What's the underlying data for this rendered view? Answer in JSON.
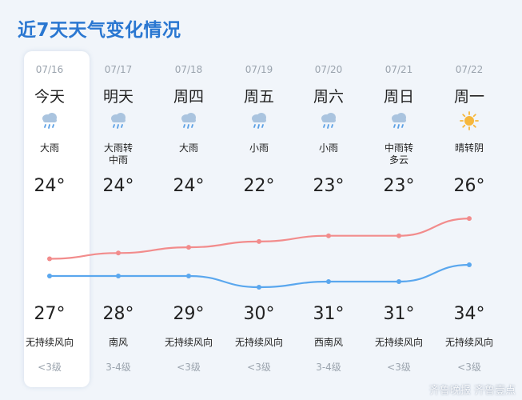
{
  "title": "近7天天气变化情况",
  "days": [
    {
      "date": "07/16",
      "weekday": "今天",
      "icon": "rain-cloud-icon",
      "condition": "大雨",
      "high": "24°",
      "low": "27°",
      "wind": "无持续风向",
      "level": "<3级"
    },
    {
      "date": "07/17",
      "weekday": "明天",
      "icon": "rain-cloud-icon",
      "condition": "大雨转\n中雨",
      "high": "24°",
      "low": "28°",
      "wind": "南风",
      "level": "3-4级"
    },
    {
      "date": "07/18",
      "weekday": "周四",
      "icon": "rain-cloud-icon",
      "condition": "大雨",
      "high": "24°",
      "low": "29°",
      "wind": "无持续风向",
      "level": "<3级"
    },
    {
      "date": "07/19",
      "weekday": "周五",
      "icon": "rain-cloud-icon",
      "condition": "小雨",
      "high": "22°",
      "low": "30°",
      "wind": "无持续风向",
      "level": "<3级"
    },
    {
      "date": "07/20",
      "weekday": "周六",
      "icon": "rain-cloud-icon",
      "condition": "小雨",
      "high": "23°",
      "low": "31°",
      "wind": "西南风",
      "level": "3-4级"
    },
    {
      "date": "07/21",
      "weekday": "周日",
      "icon": "rain-cloud-icon",
      "condition": "中雨转\n多云",
      "high": "23°",
      "low": "31°",
      "wind": "无持续风向",
      "level": "<3级"
    },
    {
      "date": "07/22",
      "weekday": "周一",
      "icon": "sun-icon",
      "condition": "晴转阴",
      "high": "26°",
      "low": "34°",
      "wind": "无持续风向",
      "level": "<3级"
    }
  ],
  "watermark": "齐鲁晚报 齐鲁壹点",
  "colors": {
    "title": "#2a77d1",
    "upper_curve": "#f28c8c",
    "lower_curve": "#5aa7ee",
    "rain_cloud": "#aac4df",
    "raindrop": "#5aa0e6",
    "sun": "#f6b73c"
  }
}
